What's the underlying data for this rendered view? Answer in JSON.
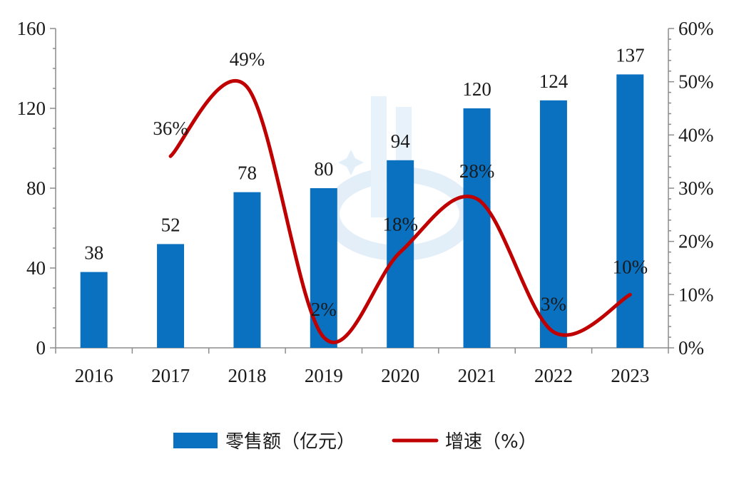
{
  "chart_data": {
    "type": "bar",
    "categories": [
      "2016",
      "2017",
      "2018",
      "2019",
      "2020",
      "2021",
      "2022",
      "2023"
    ],
    "series": [
      {
        "name": "零售额（亿元）",
        "kind": "bar",
        "axis": "left",
        "color": "#0a70c0",
        "values": [
          38,
          52,
          78,
          80,
          94,
          120,
          124,
          137
        ],
        "labels": [
          "38",
          "52",
          "78",
          "80",
          "94",
          "120",
          "124",
          "137"
        ]
      },
      {
        "name": "增速（%）",
        "kind": "line",
        "axis": "right",
        "color": "#c00000",
        "values": [
          null,
          36,
          49,
          2,
          18,
          28,
          3,
          10
        ],
        "labels": [
          "",
          "36%",
          "49%",
          "2%",
          "18%",
          "28%",
          "3%",
          "10%"
        ]
      }
    ],
    "y_left": {
      "lim": [
        0,
        160
      ],
      "ticks": [
        "0",
        "40",
        "80",
        "120",
        "160"
      ]
    },
    "y_right": {
      "lim": [
        0,
        60
      ],
      "ticks": [
        "0%",
        "10%",
        "20%",
        "30%",
        "40%",
        "50%",
        "60%"
      ]
    },
    "grid": false,
    "legend": "bottom"
  }
}
